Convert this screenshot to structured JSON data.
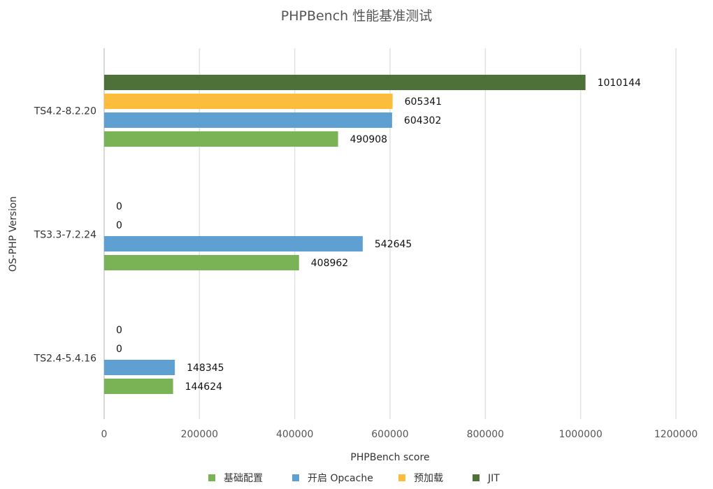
{
  "chart_data": {
    "type": "bar",
    "orientation": "horizontal",
    "title": "PHPBench 性能基准测试",
    "xlabel": "PHPBench score",
    "ylabel": "OS-PHP Version",
    "categories": [
      "TS4.2-8.2.20",
      "TS3.3-7.2.24",
      "TS2.4-5.4.16"
    ],
    "series": [
      {
        "name": "基础配置",
        "color": "#7ab356",
        "values": [
          490908,
          408962,
          144624
        ]
      },
      {
        "name": "开启 Opcache",
        "color": "#5fa0d3",
        "values": [
          604302,
          542645,
          148345
        ]
      },
      {
        "name": "预加载",
        "color": "#fbbd3b",
        "values": [
          605341,
          0,
          0
        ]
      },
      {
        "name": "JIT",
        "color": "#4e7039",
        "values": [
          1010144,
          0,
          0
        ]
      }
    ],
    "xlim": [
      0,
      1200000
    ],
    "xticks": [
      "0",
      "200000",
      "400000",
      "600000",
      "800000",
      "1000000",
      "1200000"
    ],
    "grid": true,
    "legend_position": "bottom"
  }
}
